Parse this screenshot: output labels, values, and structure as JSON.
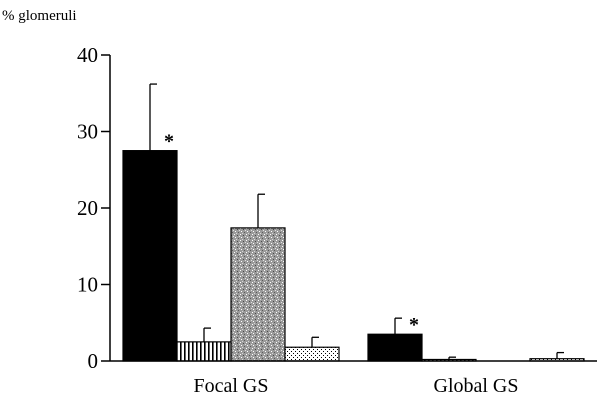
{
  "chart_data": {
    "type": "bar",
    "ylabel": "% glomeruli",
    "ylim": [
      0,
      40
    ],
    "yticks": [
      "0",
      "10",
      "20",
      "30",
      "40"
    ],
    "categories": [
      "Focal GS",
      "Global GS"
    ],
    "series": [
      {
        "fill": "solid-black",
        "values": [
          27.5,
          3.5
        ],
        "errors": [
          8.7,
          2.1
        ]
      },
      {
        "fill": "vertical-stripes",
        "values": [
          2.5,
          0.2
        ],
        "errors": [
          1.8,
          0.3
        ]
      },
      {
        "fill": "gray-speckle",
        "values": [
          17.4,
          0.0
        ],
        "errors": [
          4.4,
          0.0
        ]
      },
      {
        "fill": "dots",
        "values": [
          1.8,
          0.3
        ],
        "errors": [
          1.3,
          0.8
        ]
      }
    ],
    "annotations": [
      {
        "text": "*",
        "category": "Focal GS",
        "series_index": 0
      },
      {
        "text": "*",
        "category": "Global GS",
        "series_index": 0
      }
    ],
    "grid": false,
    "legend": "none"
  }
}
